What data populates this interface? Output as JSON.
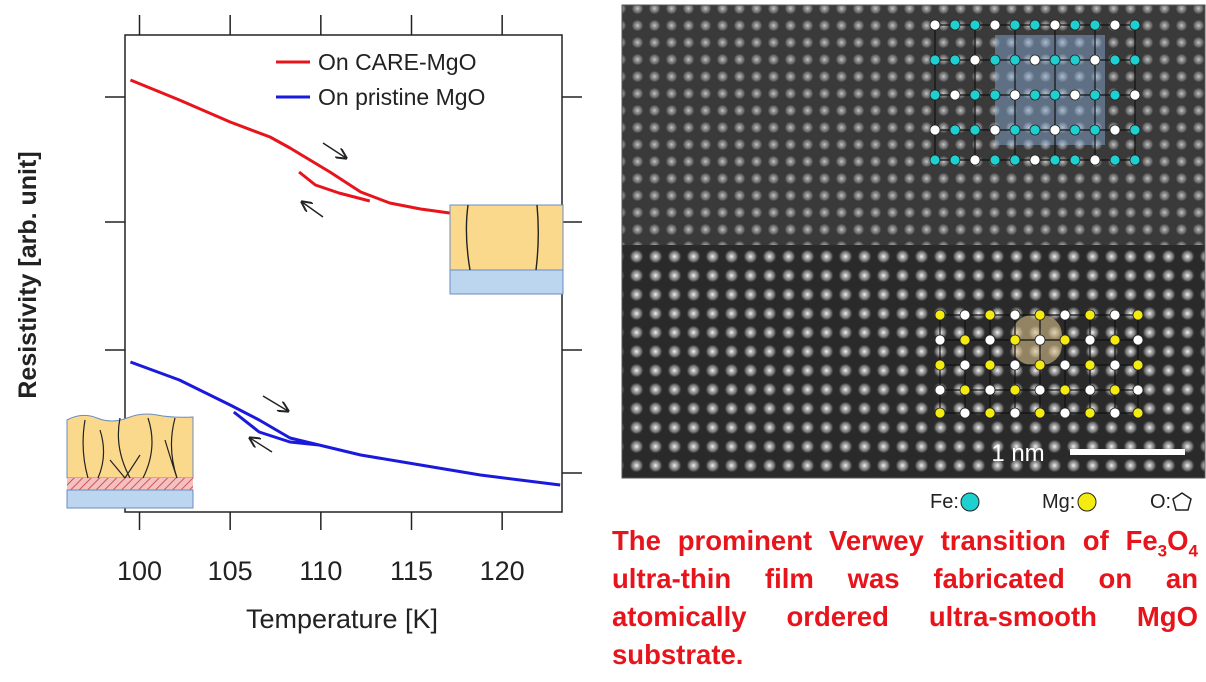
{
  "chart_data": {
    "type": "line",
    "x_label": "Temperature [K]",
    "y_label": "Resistivity [arb. unit]",
    "xlim": [
      99.2,
      123.3
    ],
    "xticks": [
      100,
      105,
      110,
      115,
      120
    ],
    "ylim": [
      0,
      4.77
    ],
    "legend": "upper right",
    "series": [
      {
        "name": "On CARE-MgO",
        "color": "#e8141c",
        "x": [
          99.5,
          102.2,
          105.0,
          107.2,
          108.3,
          109.4,
          110.5,
          112.2,
          113.8,
          115.5,
          117.1,
          108.0,
          108.8,
          109.7,
          111.0,
          112.7
        ],
        "values": [
          4.32,
          4.12,
          3.9,
          3.75,
          3.64,
          3.52,
          3.4,
          3.2,
          3.09,
          3.03,
          2.99,
          null,
          3.4,
          3.27,
          3.19,
          3.11
        ]
      },
      {
        "name": "On pristine MgO",
        "color": "#1a1adc",
        "x": [
          99.5,
          102.2,
          105.0,
          106.6,
          108.3,
          109.9,
          112.2,
          115.5,
          118.8,
          123.2,
          105.0,
          105.2,
          106.6,
          108.3,
          109.9
        ],
        "values": [
          1.5,
          1.32,
          1.07,
          0.92,
          0.74,
          0.67,
          0.57,
          0.47,
          0.37,
          0.27,
          null,
          1.0,
          0.8,
          0.7,
          0.67
        ]
      }
    ]
  },
  "image": {
    "scale_bar": "1 nm",
    "key": [
      "Fe:",
      "Mg:",
      "O:"
    ]
  },
  "caption": [
    "The prominent Verwey transition of ",
    "Fe",
    "3",
    "O",
    "4",
    " ultra-thin film was fabricated on an atomically ordered ultra-smooth MgO substrate."
  ]
}
